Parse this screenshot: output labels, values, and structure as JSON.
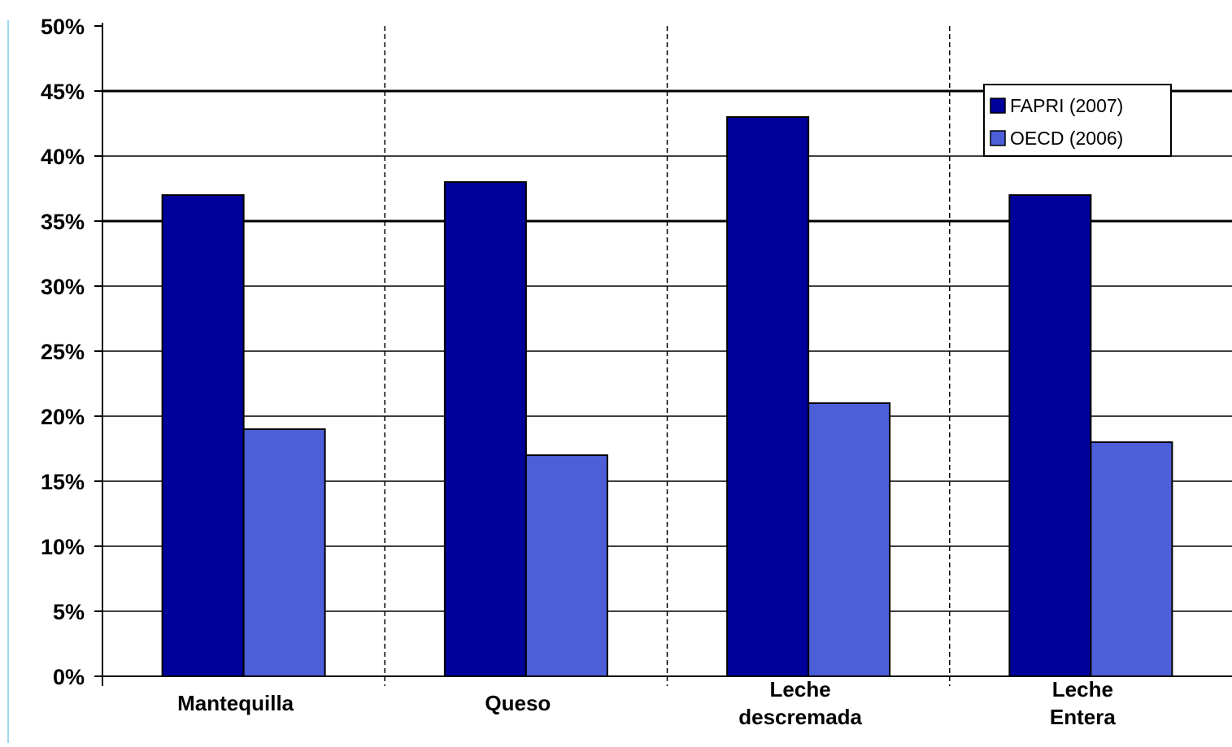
{
  "chart_data": {
    "type": "bar",
    "title": "",
    "xlabel": "",
    "ylabel": "",
    "categories": [
      [
        "Mantequilla"
      ],
      [
        "Queso"
      ],
      [
        "Leche",
        "descremada"
      ],
      [
        "Leche",
        "Entera"
      ]
    ],
    "series": [
      {
        "name": "FAPRI (2007)",
        "color": "#00009a",
        "values": [
          37,
          38,
          43,
          37
        ]
      },
      {
        "name": "OECD (2006)",
        "color": "#4c5fd8",
        "values": [
          19,
          17,
          21,
          18
        ]
      }
    ],
    "ylim": [
      0,
      50
    ],
    "yticks": [
      "0%",
      "5%",
      "10%",
      "15%",
      "20%",
      "25%",
      "30%",
      "35%",
      "40%",
      "45%",
      "50%"
    ],
    "grid": true,
    "legend_position": "top-right"
  }
}
